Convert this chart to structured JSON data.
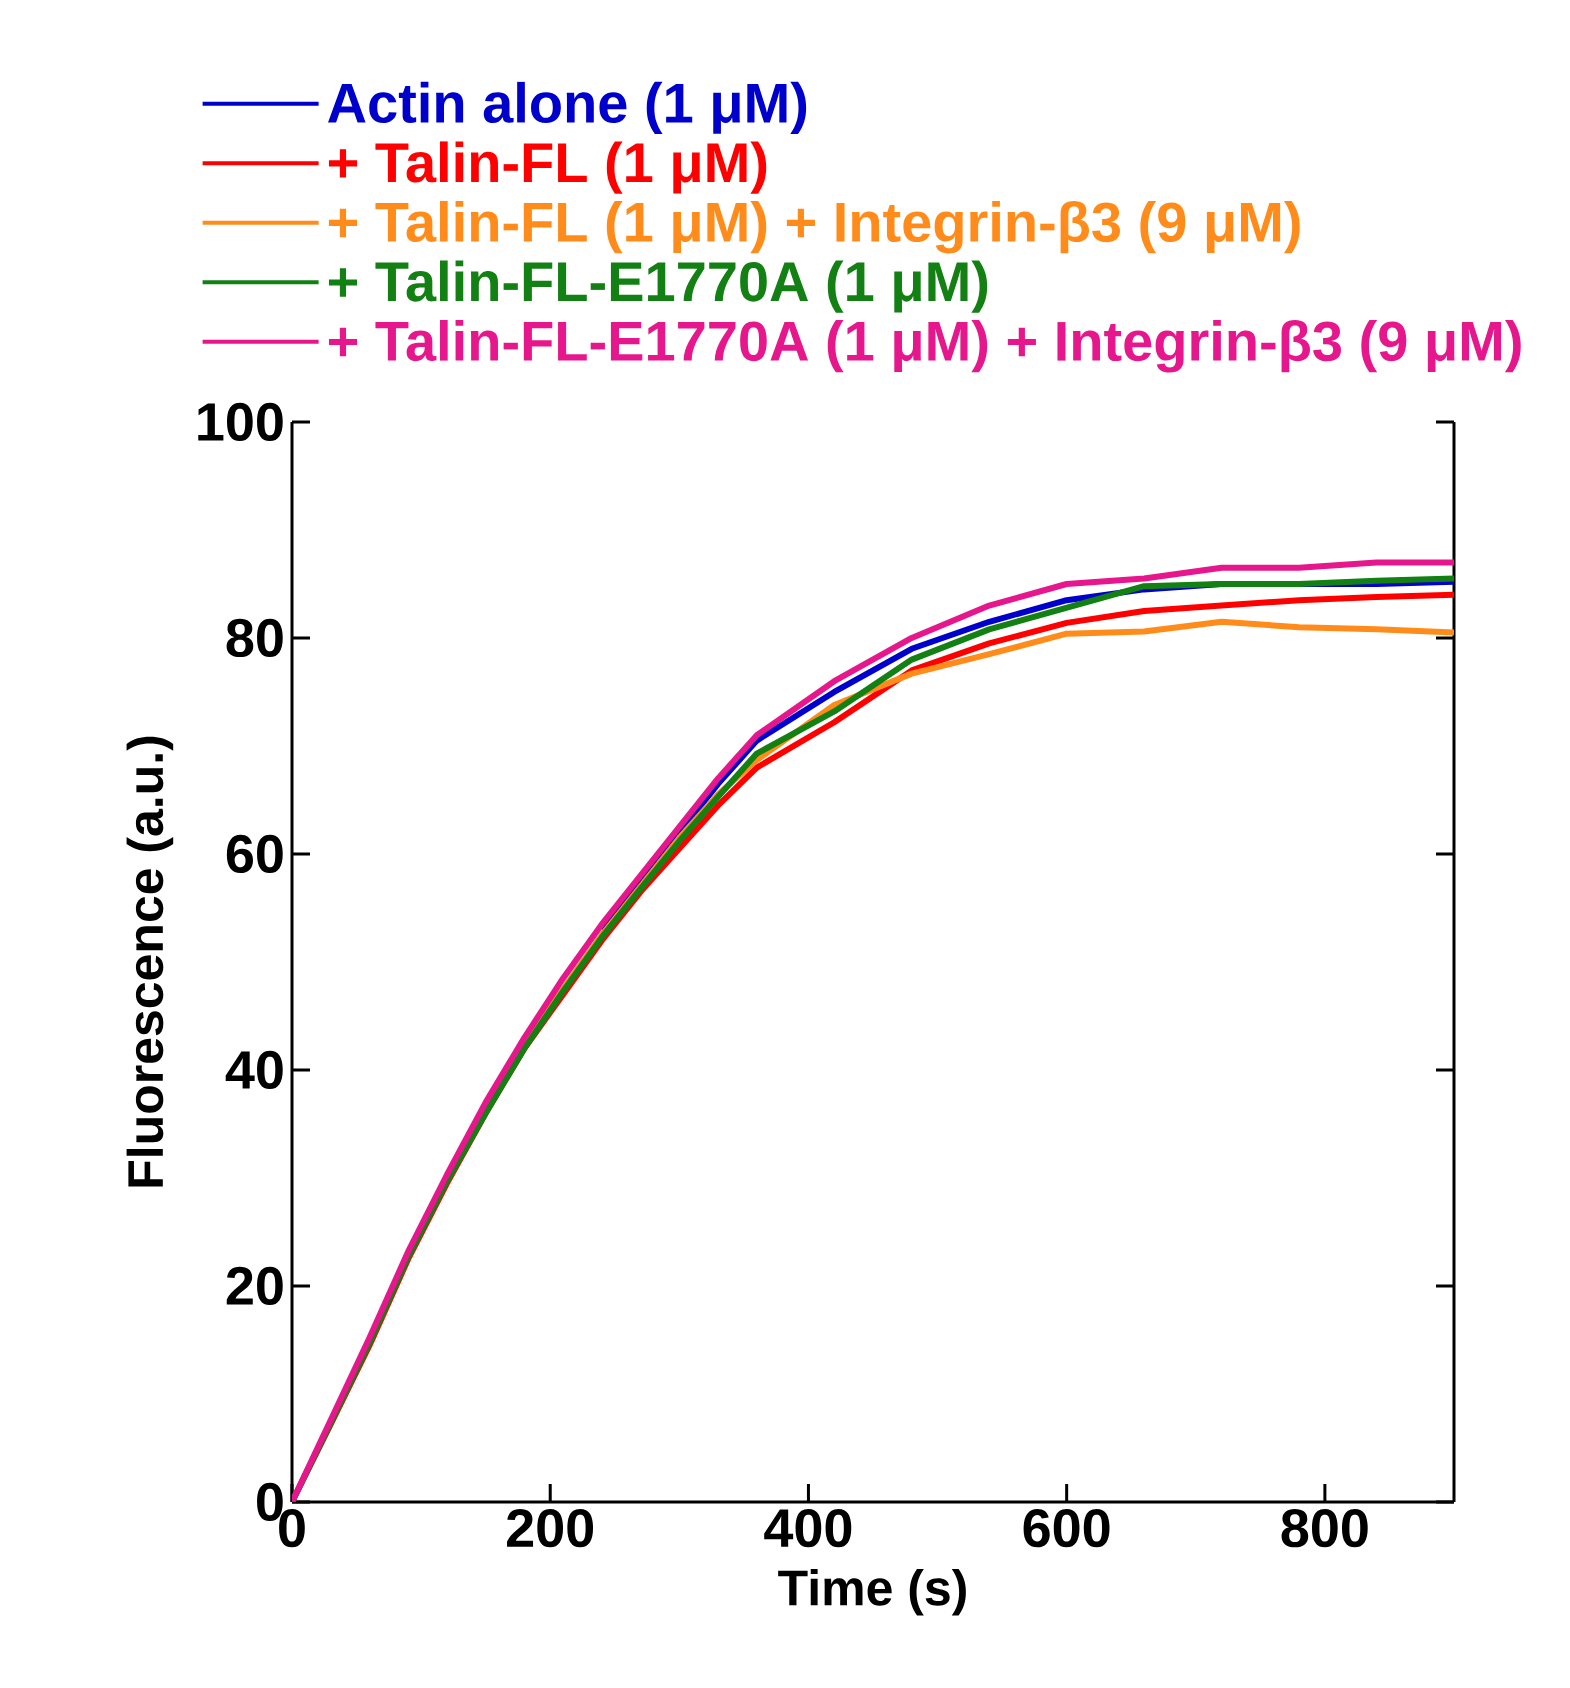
{
  "chart_data": {
    "type": "line",
    "xlabel": "Time (s)",
    "ylabel": "Fluorescence (a.u.)",
    "x": [
      0,
      30,
      60,
      90,
      120,
      150,
      180,
      210,
      240,
      270,
      300,
      330,
      360,
      420,
      480,
      540,
      600,
      660,
      720,
      780,
      840,
      900
    ],
    "xlim": [
      0,
      900
    ],
    "xticks": [
      0,
      200,
      400,
      600,
      800
    ],
    "ylim": [
      0,
      100
    ],
    "yticks": [
      0,
      20,
      40,
      60,
      80,
      100
    ],
    "grid": false,
    "legend": "top",
    "marker": "none",
    "line_style": "solid",
    "series": [
      {
        "name": "Actin alone (1 μM)",
        "color": "#0000cc",
        "values": [
          null,
          null,
          null,
          null,
          null,
          null,
          null,
          null,
          53,
          57.5,
          62,
          66.5,
          70.5,
          75,
          79,
          81.5,
          83.5,
          84.5,
          85,
          85,
          85,
          85.2
        ]
      },
      {
        "name": "+ Talin-FL (1 μM)",
        "color": "#ff0000",
        "values": [
          0,
          7.2,
          14.5,
          22.5,
          29.5,
          36,
          42,
          47,
          52,
          56.5,
          60.5,
          64.5,
          68,
          72.2,
          77,
          79.5,
          81.4,
          82.5,
          83,
          83.5,
          83.8,
          84
        ]
      },
      {
        "name": "+ Talin-FL (1 μM) + Integrin-β3 (9 μM)",
        "color": "#ff8c1a",
        "values": [
          null,
          null,
          null,
          null,
          null,
          36.5,
          42.5,
          47.5,
          52.5,
          57,
          61.5,
          65.5,
          68.7,
          73.8,
          76.7,
          78.5,
          80.4,
          80.6,
          81.5,
          81,
          80.8,
          80.5
        ]
      },
      {
        "name": "+ Talin-FL-E1770A (1 μM)",
        "color": "#128012",
        "values": [
          0,
          7.3,
          14.7,
          22.7,
          29.7,
          36,
          42,
          47.3,
          52.3,
          56.8,
          61.2,
          65.3,
          69.3,
          73.2,
          78,
          80.8,
          82.8,
          84.8,
          85,
          85,
          85.3,
          85.5
        ]
      },
      {
        "name": "+ Talin-FL-E1770A (1 μM) + Integrin-β3 (9 μM)",
        "color": "#e6178c",
        "values": [
          0,
          7.6,
          15.2,
          23.2,
          30.3,
          37,
          43,
          48.5,
          53.5,
          58,
          62.5,
          67,
          71,
          76,
          80,
          83,
          85,
          85.5,
          86.5,
          86.5,
          87,
          87
        ]
      }
    ]
  }
}
